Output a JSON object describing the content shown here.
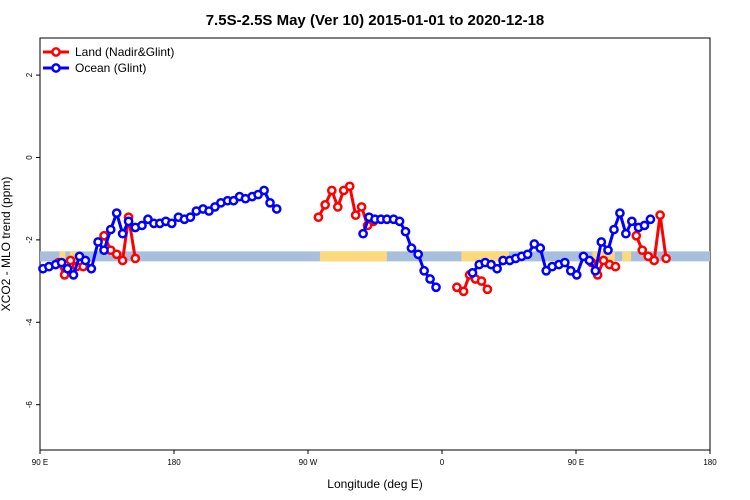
{
  "chart_data": {
    "type": "line",
    "title": "7.5S-2.5S May (Ver 10)   2015-01-01 to 2020-12-18",
    "xlabel": "Longitude (deg E)",
    "ylabel": "XCO2 - MLO trend (ppm)",
    "x_ticks": [
      {
        "value": 90,
        "label": "90 E"
      },
      {
        "value": 180,
        "label": "180"
      },
      {
        "value": 270,
        "label": "90 W"
      },
      {
        "value": 360,
        "label": "0"
      },
      {
        "value": 450,
        "label": "90 E"
      },
      {
        "value": 540,
        "label": "180"
      }
    ],
    "y_ticks": [
      {
        "value": 2,
        "label": "2"
      },
      {
        "value": 0,
        "label": "0"
      },
      {
        "value": -2,
        "label": "-2"
      },
      {
        "value": -4,
        "label": "-4"
      },
      {
        "value": -6,
        "label": "-6"
      }
    ],
    "xlim": [
      90,
      540
    ],
    "ylim": [
      -7.1,
      2.9
    ],
    "grid": false,
    "legend_position": "top-left",
    "surface_band": {
      "y_center": -2.4,
      "ocean_color": "#a8bedd",
      "land_color": "#fcd97a",
      "land_ranges": [
        [
          103,
          107
        ],
        [
          110,
          116
        ],
        [
          278,
          323
        ],
        [
          373,
          405
        ],
        [
          461,
          476
        ],
        [
          481,
          487
        ]
      ]
    },
    "series": [
      {
        "name": "Land (Nadir&Glint)",
        "color": "#ff0000",
        "segments": [
          [
            [
              102.5,
              -2.55
            ],
            [
              106.5,
              -2.85
            ],
            [
              110.5,
              -2.5
            ],
            [
              114.5,
              -2.65
            ],
            [
              119,
              -2.65
            ]
          ],
          [
            [
              133,
              -1.9
            ],
            [
              137.5,
              -2.25
            ],
            [
              141.5,
              -2.35
            ],
            [
              145.5,
              -2.5
            ],
            [
              149.5,
              -1.45
            ],
            [
              154,
              -2.45
            ]
          ],
          [
            [
              277,
              -1.45
            ],
            [
              281.5,
              -1.15
            ],
            [
              286,
              -0.8
            ],
            [
              290,
              -1.2
            ],
            [
              294,
              -0.8
            ],
            [
              298,
              -0.7
            ],
            [
              302,
              -1.4
            ],
            [
              306,
              -1.2
            ],
            [
              310,
              -1.65
            ],
            [
              314,
              -1.55
            ]
          ],
          [
            [
              370,
              -3.15
            ],
            [
              374.5,
              -3.25
            ],
            [
              378.5,
              -2.85
            ],
            [
              382.5,
              -2.95
            ],
            [
              386.5,
              -3.0
            ],
            [
              390.5,
              -3.2
            ]
          ],
          [
            [
              460.5,
              -2.55
            ],
            [
              464.5,
              -2.85
            ],
            [
              468.5,
              -2.5
            ],
            [
              472.5,
              -2.6
            ],
            [
              476.5,
              -2.65
            ]
          ],
          [
            [
              490.5,
              -1.9
            ],
            [
              494.5,
              -2.25
            ],
            [
              498.5,
              -2.4
            ],
            [
              502.5,
              -2.5
            ],
            [
              506.5,
              -1.4
            ],
            [
              510.5,
              -2.45
            ]
          ]
        ]
      },
      {
        "name": "Ocean (Glint)",
        "color": "#0000ff",
        "segments": [
          [
            [
              92,
              -2.7
            ],
            [
              96,
              -2.65
            ],
            [
              100.5,
              -2.6
            ],
            [
              104.5,
              -2.55
            ],
            [
              108.5,
              -2.7
            ],
            [
              112.5,
              -2.85
            ],
            [
              116.5,
              -2.4
            ],
            [
              120.5,
              -2.5
            ],
            [
              124.5,
              -2.7
            ],
            [
              129,
              -2.05
            ],
            [
              133,
              -2.25
            ],
            [
              137.5,
              -1.75
            ],
            [
              141.5,
              -1.35
            ],
            [
              145.5,
              -1.85
            ],
            [
              149.5,
              -1.55
            ],
            [
              154,
              -1.7
            ],
            [
              158.5,
              -1.65
            ],
            [
              162.5,
              -1.5
            ],
            [
              166.5,
              -1.6
            ],
            [
              170.5,
              -1.6
            ],
            [
              174.5,
              -1.55
            ],
            [
              178.5,
              -1.6
            ],
            [
              183,
              -1.45
            ],
            [
              187,
              -1.5
            ],
            [
              191,
              -1.45
            ],
            [
              195,
              -1.3
            ],
            [
              199.5,
              -1.25
            ],
            [
              203.5,
              -1.3
            ],
            [
              207.5,
              -1.2
            ],
            [
              211.5,
              -1.1
            ],
            [
              216,
              -1.05
            ],
            [
              220,
              -1.05
            ],
            [
              224,
              -0.95
            ],
            [
              228,
              -1.0
            ],
            [
              232.5,
              -0.95
            ],
            [
              236.5,
              -0.9
            ],
            [
              240.5,
              -0.8
            ],
            [
              244.5,
              -1.1
            ],
            [
              249,
              -1.25
            ]
          ],
          [
            [
              307,
              -1.85
            ],
            [
              311,
              -1.45
            ],
            [
              315,
              -1.5
            ],
            [
              319,
              -1.5
            ],
            [
              323,
              -1.5
            ],
            [
              327.5,
              -1.5
            ],
            [
              331.5,
              -1.55
            ],
            [
              335.5,
              -1.8
            ],
            [
              339.5,
              -2.2
            ],
            [
              344,
              -2.35
            ],
            [
              348,
              -2.75
            ],
            [
              352,
              -2.95
            ],
            [
              356,
              -3.15
            ]
          ],
          [
            [
              380.5,
              -2.8
            ],
            [
              385,
              -2.6
            ],
            [
              389,
              -2.55
            ],
            [
              393,
              -2.6
            ],
            [
              397,
              -2.7
            ],
            [
              401,
              -2.5
            ],
            [
              405.5,
              -2.5
            ],
            [
              409.5,
              -2.45
            ],
            [
              413.5,
              -2.4
            ],
            [
              417.5,
              -2.35
            ],
            [
              422,
              -2.1
            ],
            [
              426,
              -2.2
            ],
            [
              430,
              -2.75
            ],
            [
              434,
              -2.65
            ],
            [
              438.5,
              -2.6
            ],
            [
              442.5,
              -2.55
            ],
            [
              446.5,
              -2.75
            ],
            [
              450.5,
              -2.85
            ],
            [
              455,
              -2.4
            ],
            [
              459,
              -2.5
            ],
            [
              463,
              -2.75
            ],
            [
              467,
              -2.05
            ],
            [
              471.5,
              -2.25
            ],
            [
              475.5,
              -1.75
            ],
            [
              479.5,
              -1.35
            ],
            [
              483.5,
              -1.85
            ],
            [
              487.5,
              -1.55
            ],
            [
              492,
              -1.7
            ],
            [
              496,
              -1.65
            ],
            [
              500,
              -1.5
            ]
          ]
        ]
      }
    ]
  }
}
